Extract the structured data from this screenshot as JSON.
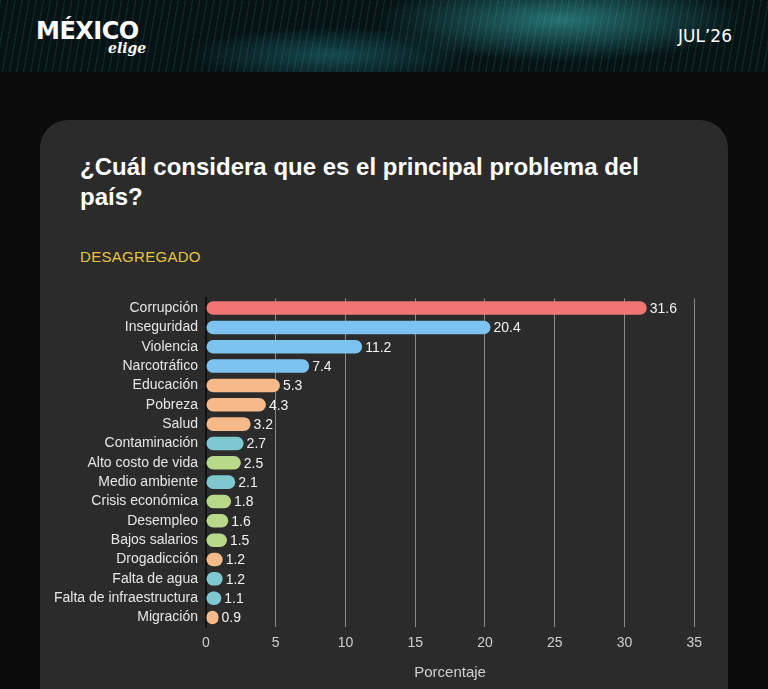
{
  "header": {
    "logo": "MÉXICO",
    "logo_sub": "elige",
    "date": "JUL’26"
  },
  "chart_data": {
    "type": "bar",
    "orientation": "horizontal",
    "title": "¿Cuál considera que es el principal problema del país?",
    "subtitle": "DESAGREGADO",
    "x_label": "Porcentaje",
    "categories": [
      "Corrupción",
      "Inseguridad",
      "Violencia",
      "Narcotráfico",
      "Educación",
      "Pobreza",
      "Salud",
      "Contaminación",
      "Alto costo de vida",
      "Medio ambiente",
      "Crisis económica",
      "Desempleo",
      "Bajos salarios",
      "Drogadicción",
      "Falta de agua",
      "Falta de infraestructura",
      "Migración"
    ],
    "values": [
      31.6,
      20.4,
      11.2,
      7.4,
      5.3,
      4.3,
      3.2,
      2.7,
      2.5,
      2.1,
      1.8,
      1.6,
      1.5,
      1.2,
      1.2,
      1.1,
      0.9
    ],
    "colors": [
      "#f07575",
      "#7cc3f0",
      "#7cc3f0",
      "#7cc3f0",
      "#f5b98a",
      "#f5b98a",
      "#f5b98a",
      "#7fc8d0",
      "#b8d98a",
      "#7fc8d0",
      "#b8d98a",
      "#b8d98a",
      "#b8d98a",
      "#f5b98a",
      "#7fc8d0",
      "#7fc8d0",
      "#f5b98a"
    ],
    "xlim": [
      0,
      35
    ],
    "xticks": [
      0,
      5,
      10,
      15,
      20,
      25,
      30,
      35
    ],
    "grid": true,
    "data_labels": true
  }
}
